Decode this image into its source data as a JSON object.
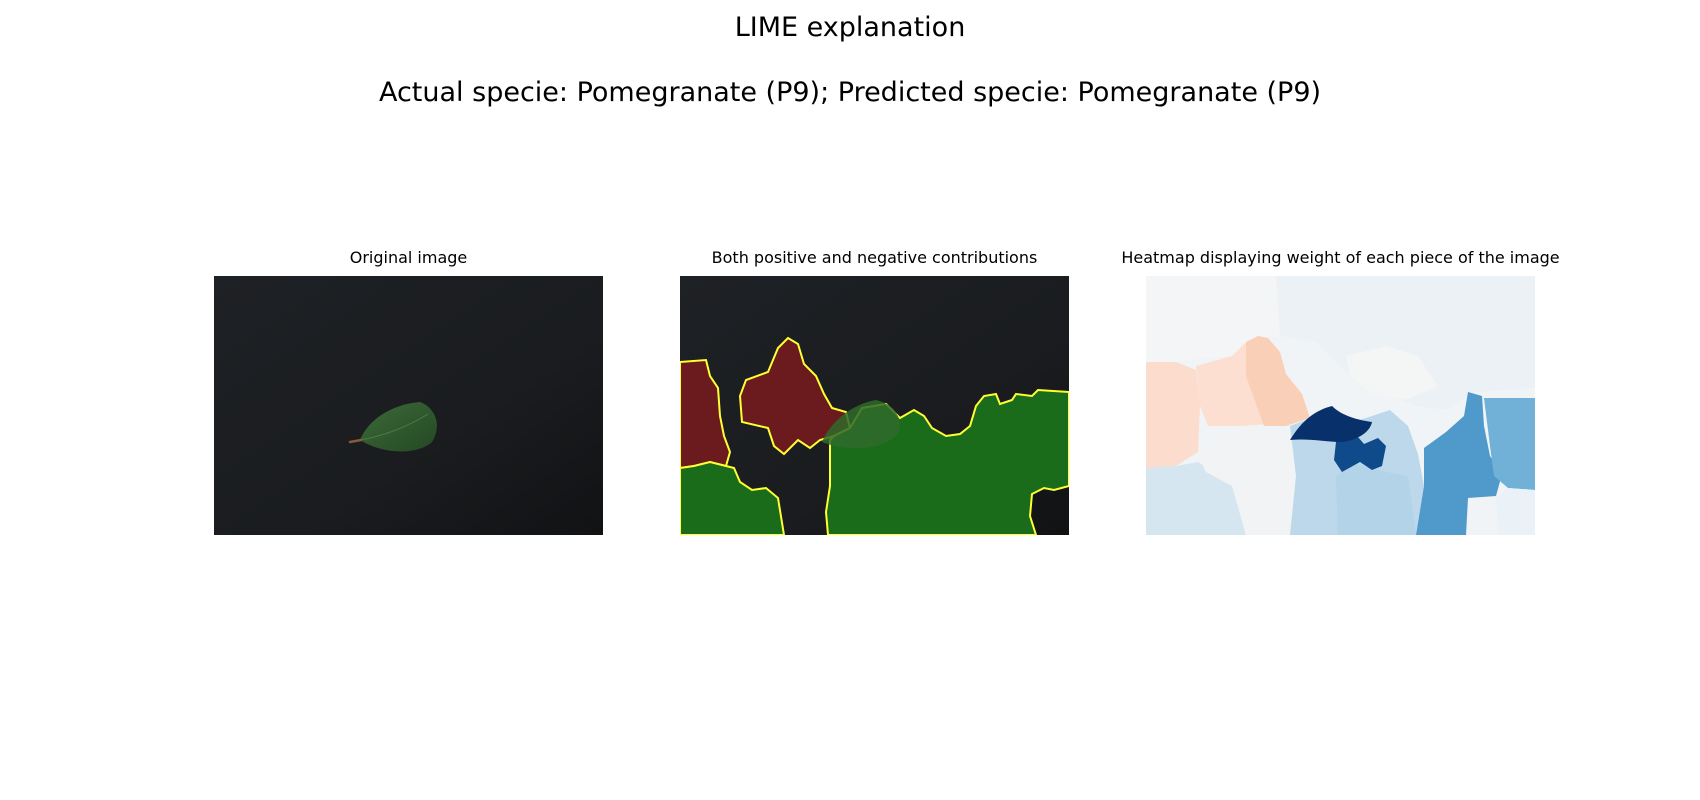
{
  "figure": {
    "title": "LIME explanation",
    "subtitle": "Actual specie: Pomegranate (P9); Predicted specie: Pomegranate (P9)"
  },
  "panels": [
    {
      "id": "original",
      "title": "Original image",
      "content": "leaf-photo"
    },
    {
      "id": "contributions",
      "title": "Both positive and negative contributions",
      "content": "segment-overlay",
      "colors": {
        "positive": "#1a6b1a",
        "negative": "#6b1a1e",
        "boundary": "#ffff00"
      }
    },
    {
      "id": "heatmap",
      "title": "Heatmap displaying weight of each piece of the image",
      "content": "segment-weight-heatmap",
      "colormap": "RdBu"
    }
  ],
  "colors": {
    "background_photo": "#1b1d20",
    "leaf": "#2f5a2e",
    "leaf_stem": "#8a5a3a"
  }
}
